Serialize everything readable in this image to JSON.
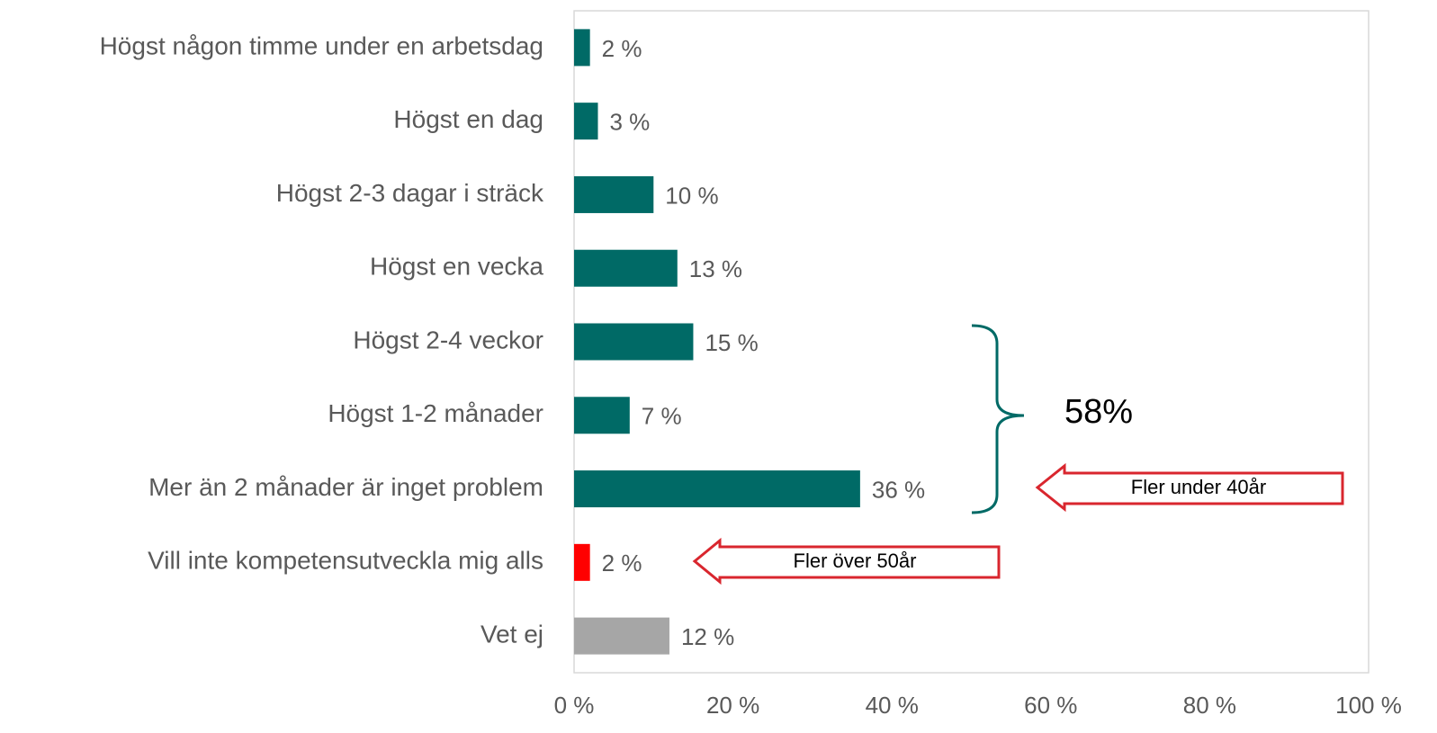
{
  "chart_data": {
    "type": "hbar",
    "categories": [
      "Högst någon timme under en arbetsdag",
      "Högst en dag",
      "Högst 2-3 dagar i sträck",
      "Högst en vecka",
      "Högst 2-4 veckor",
      "Högst 1-2 månader",
      "Mer än 2 månader är inget problem",
      "Vill inte kompetensutveckla mig alls",
      "Vet ej"
    ],
    "values": [
      2,
      3,
      10,
      13,
      15,
      7,
      36,
      2,
      12
    ],
    "value_labels": [
      "2 %",
      "3 %",
      "10 %",
      "13 %",
      "15 %",
      "7 %",
      "36 %",
      "2 %",
      "12 %"
    ],
    "colors": [
      "#006a66",
      "#006a66",
      "#006a66",
      "#006a66",
      "#006a66",
      "#006a66",
      "#006a66",
      "#ff0000",
      "#a6a6a6"
    ],
    "xlim": [
      0,
      100
    ],
    "xticks": [
      {
        "value": 0,
        "label": "0 %"
      },
      {
        "value": 20,
        "label": "20 %"
      },
      {
        "value": 40,
        "label": "40 %"
      },
      {
        "value": 60,
        "label": "60 %"
      },
      {
        "value": 80,
        "label": "80 %"
      },
      {
        "value": 100,
        "label": "100 %"
      }
    ],
    "grid": false,
    "annotations": [
      "58%",
      "Fler under 40år",
      "Fler över 50år"
    ]
  }
}
